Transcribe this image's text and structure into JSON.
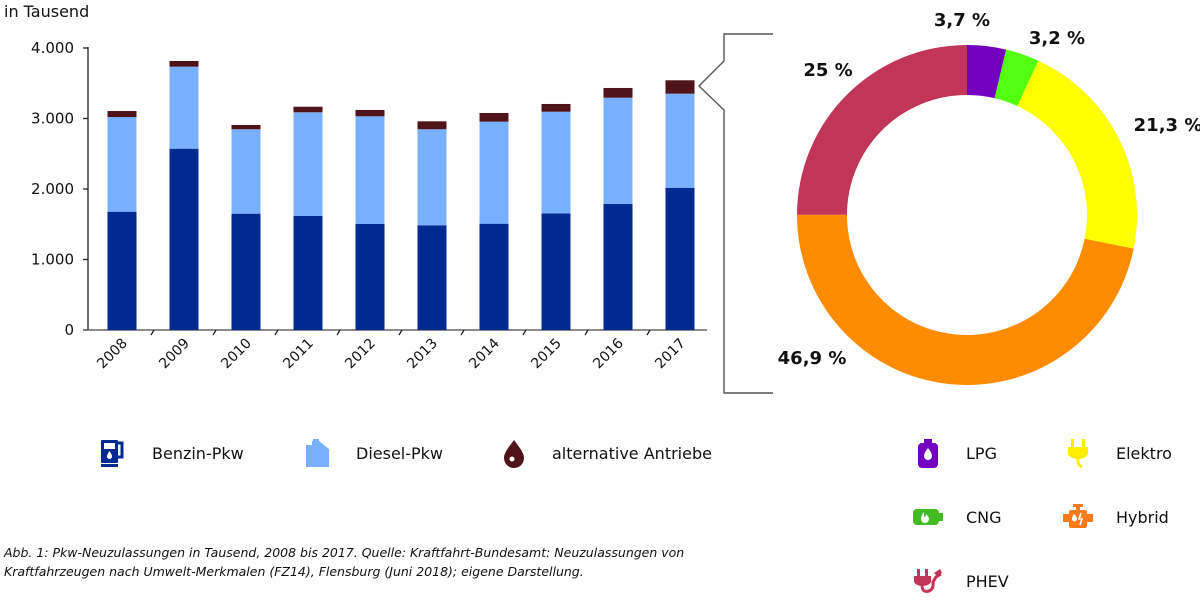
{
  "chart_data": [
    {
      "type": "bar",
      "stacked": true,
      "unit_label": "in Tausend",
      "categories": [
        "2008",
        "2009",
        "2010",
        "2011",
        "2012",
        "2013",
        "2014",
        "2015",
        "2016",
        "2017"
      ],
      "series": [
        {
          "name": "Benzin-Pkw",
          "color": "#002A8F",
          "values": [
            1678,
            2572,
            1650,
            1617,
            1504,
            1485,
            1508,
            1655,
            1787,
            2018
          ]
        },
        {
          "name": "Diesel-Pkw",
          "color": "#78B0FF",
          "values": [
            1343,
            1163,
            1197,
            1471,
            1527,
            1362,
            1447,
            1441,
            1508,
            1334
          ]
        },
        {
          "name": "alternative Antriebe",
          "color": "#4F141A",
          "values": [
            85,
            81,
            61,
            79,
            90,
            113,
            123,
            110,
            138,
            190
          ]
        }
      ],
      "ylim": [
        0,
        4000
      ],
      "yticks": [
        0,
        1000,
        2000,
        3000,
        4000
      ],
      "ytick_labels": [
        "0",
        "1.000",
        "2.000",
        "3.000",
        "4.000"
      ],
      "grid": false,
      "legend_position": "bottom"
    },
    {
      "type": "pie",
      "donut": true,
      "detail_of": "2017 alternative Antriebe",
      "slices": [
        {
          "name": "LPG",
          "value": 3.7,
          "label": "3,7 %",
          "color": "#7300C0"
        },
        {
          "name": "CNG",
          "value": 3.2,
          "label": "3,2 %",
          "color": "#55FF10"
        },
        {
          "name": "Elektro",
          "value": 21.3,
          "label": "21,3 %",
          "color": "#FFFF00"
        },
        {
          "name": "Hybrid",
          "value": 46.9,
          "label": "46,9 %",
          "color": "#FF8C00"
        },
        {
          "name": "PHEV",
          "value": 25,
          "label": "25 %",
          "color": "#C03558"
        }
      ],
      "legend_position": "bottom-right"
    }
  ],
  "legend_bars": [
    {
      "label": "Benzin-Pkw",
      "icon": "fuel-pump-icon",
      "color": "#002A8F"
    },
    {
      "label": "Diesel-Pkw",
      "icon": "jerrycan-icon",
      "color": "#78B0FF"
    },
    {
      "label": "alternative Antriebe",
      "icon": "drop-icon",
      "color": "#4F141A"
    }
  ],
  "legend_donut": [
    {
      "label": "LPG",
      "icon": "gas-bottle-icon",
      "color": "#7300C0"
    },
    {
      "label": "Elektro",
      "icon": "plug-icon",
      "color": "#FFEE00"
    },
    {
      "label": "CNG",
      "icon": "gas-cylinder-flame-icon",
      "color": "#44BB22"
    },
    {
      "label": "Hybrid",
      "icon": "engine-icon",
      "color": "#FF7A1A"
    },
    {
      "label": "PHEV",
      "icon": "plug-hybrid-icon",
      "color": "#C03558"
    }
  ],
  "caption": {
    "line1": "Abb. 1: Pkw-Neuzulassungen in Tausend, 2008 bis 2017. Quelle: Kraftfahrt-Bundesamt: Neuzulassungen von",
    "line2": "Kraftfahrzeugen nach Umwelt-Merkmalen (FZ14), Flensburg (Juni 2018); eigene Darstellung."
  }
}
